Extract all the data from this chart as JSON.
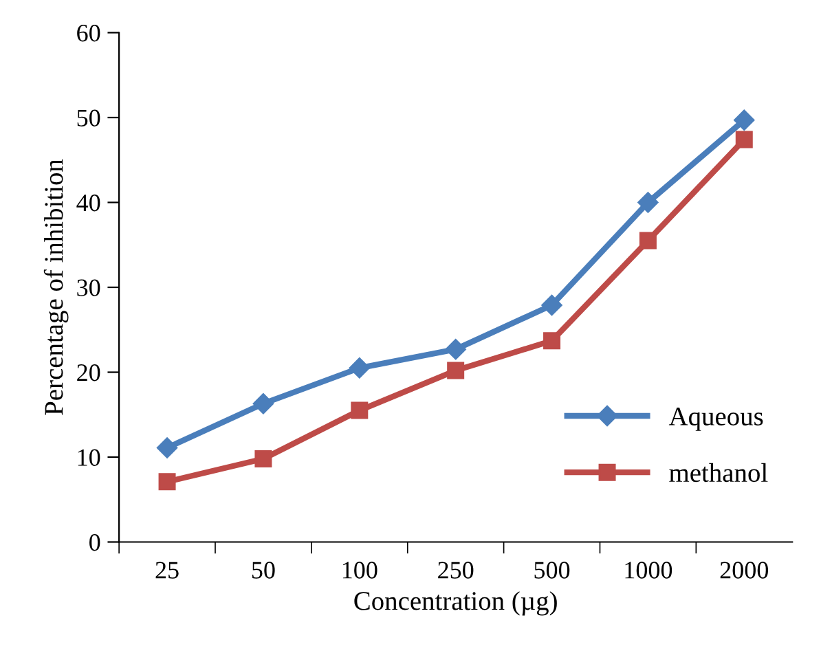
{
  "chart_data": {
    "type": "line",
    "xlabel": "Concentration (µg)",
    "ylabel": "Percentage of inhibition",
    "categories": [
      "25",
      "50",
      "100",
      "250",
      "500",
      "1000",
      "2000"
    ],
    "series": [
      {
        "name": "Aqueous",
        "color": "#4a7ebb",
        "marker": "diamond",
        "values": [
          11.1,
          16.3,
          20.5,
          22.7,
          27.9,
          40.0,
          49.7
        ]
      },
      {
        "name": "methanol",
        "color": "#be4b48",
        "marker": "square",
        "values": [
          7.1,
          9.8,
          15.5,
          20.2,
          23.7,
          35.5,
          47.4
        ]
      }
    ],
    "ylim": [
      0,
      60
    ],
    "yticks": [
      0,
      10,
      20,
      30,
      40,
      50,
      60
    ],
    "grid": false,
    "legend": "bottom right",
    "line_style": "solid"
  }
}
